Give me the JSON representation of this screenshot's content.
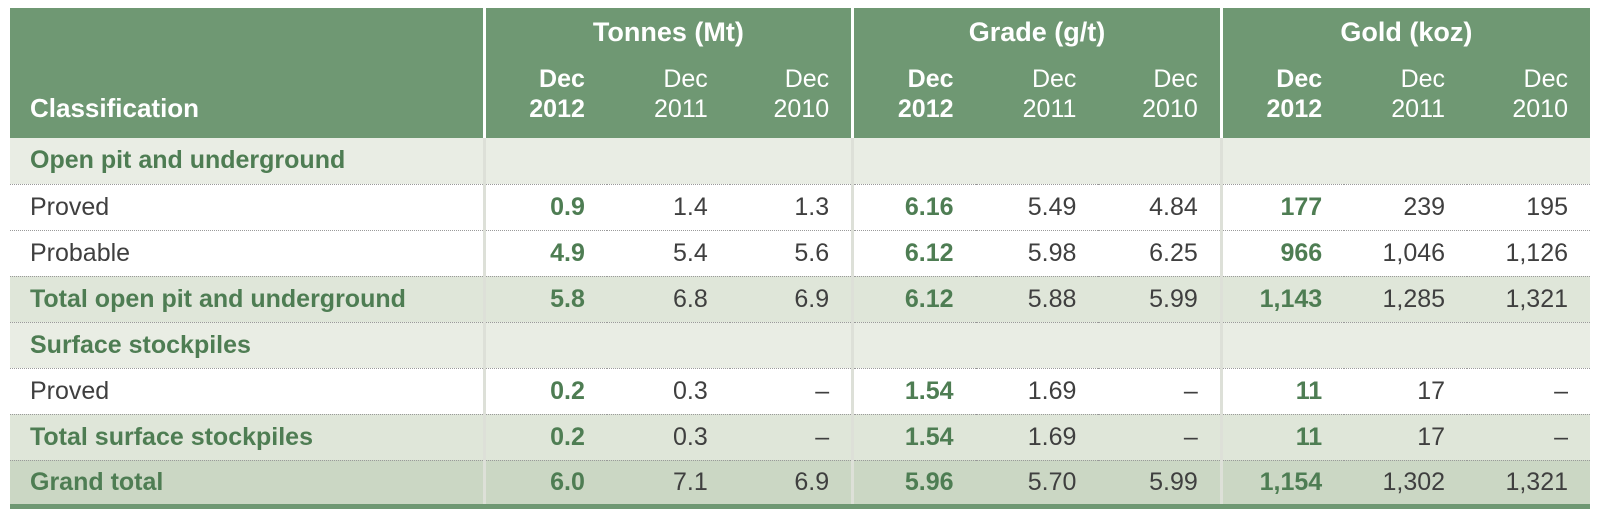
{
  "colors": {
    "header_bg": "#6f9873",
    "accent_green": "#4e7d53",
    "section_bg": "#e9ede4",
    "total_bg": "#dfe6d9",
    "grand_bg": "#cbd7c4",
    "body_text": "#3f3f3f",
    "divider": "#ffffff"
  },
  "header": {
    "classification": "Classification",
    "groups": [
      "Tonnes (Mt)",
      "Grade (g/t)",
      "Gold (koz)"
    ],
    "periods": [
      {
        "l1": "Dec",
        "l2": "2012"
      },
      {
        "l1": "Dec",
        "l2": "2011"
      },
      {
        "l1": "Dec",
        "l2": "2010"
      }
    ]
  },
  "rows": [
    {
      "type": "section",
      "label": "Open pit and underground",
      "values": []
    },
    {
      "type": "data",
      "label": "Proved",
      "values": [
        "0.9",
        "1.4",
        "1.3",
        "6.16",
        "5.49",
        "4.84",
        "177",
        "239",
        "195"
      ]
    },
    {
      "type": "data",
      "label": "Probable",
      "values": [
        "4.9",
        "5.4",
        "5.6",
        "6.12",
        "5.98",
        "6.25",
        "966",
        "1,046",
        "1,126"
      ]
    },
    {
      "type": "total",
      "label": "Total open pit and underground",
      "values": [
        "5.8",
        "6.8",
        "6.9",
        "6.12",
        "5.88",
        "5.99",
        "1,143",
        "1,285",
        "1,321"
      ]
    },
    {
      "type": "section",
      "label": "Surface stockpiles",
      "values": []
    },
    {
      "type": "data",
      "label": "Proved",
      "values": [
        "0.2",
        "0.3",
        "–",
        "1.54",
        "1.69",
        "–",
        "11",
        "17",
        "–"
      ]
    },
    {
      "type": "total",
      "label": "Total surface stockpiles",
      "values": [
        "0.2",
        "0.3",
        "–",
        "1.54",
        "1.69",
        "–",
        "11",
        "17",
        "–"
      ]
    },
    {
      "type": "grand",
      "label": "Grand total",
      "values": [
        "6.0",
        "7.1",
        "6.9",
        "5.96",
        "5.70",
        "5.99",
        "1,154",
        "1,302",
        "1,321"
      ]
    }
  ]
}
